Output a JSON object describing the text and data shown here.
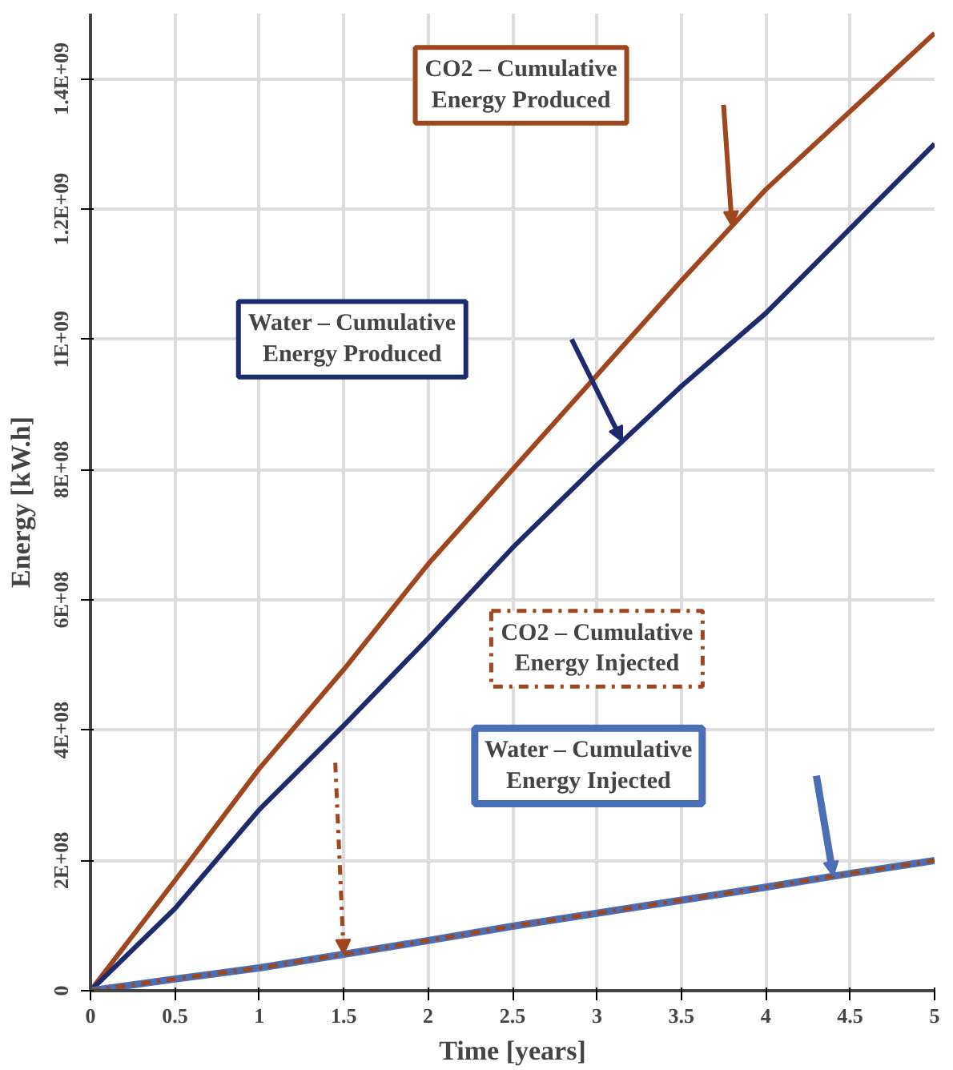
{
  "chart_data": {
    "type": "line",
    "xlabel": "Time [years]",
    "ylabel": "Energy [kW.h]",
    "x": [
      0,
      0.5,
      1,
      1.5,
      2,
      2.5,
      3,
      3.5,
      4,
      4.5,
      5
    ],
    "series": [
      {
        "name": "CO2 – Cumulative Energy Produced",
        "color": "#a0461e",
        "line_style": "solid",
        "values": [
          0,
          169000000.0,
          341000000.0,
          493000000.0,
          655000000.0,
          800000000.0,
          945000000.0,
          1090000000.0,
          1230000000.0,
          1350000000.0,
          1470000000.0
        ]
      },
      {
        "name": "Water – Cumulative Energy Produced",
        "color": "#1c2a6e",
        "line_style": "solid",
        "values": [
          0,
          126000000.0,
          278000000.0,
          407000000.0,
          541000000.0,
          680000000.0,
          807000000.0,
          928000000.0,
          1040000000.0,
          1170000000.0,
          1300000000.0
        ]
      },
      {
        "name": "Water – Cumulative Energy Injected",
        "color": "#4a6fb5",
        "line_style": "solid",
        "values": [
          0,
          18000000.0,
          35000000.0,
          56000000.0,
          77000000.0,
          99000000.0,
          119000000.0,
          139000000.0,
          159000000.0,
          180000000.0,
          200000000.0
        ]
      },
      {
        "name": "CO2 – Cumulative Energy Injected",
        "color": "#a0461e",
        "line_style": "dashdot",
        "values": [
          0,
          18000000.0,
          35000000.0,
          56000000.0,
          77000000.0,
          99000000.0,
          119000000.0,
          139000000.0,
          159000000.0,
          180000000.0,
          200000000.0
        ]
      }
    ],
    "xlim": [
      0,
      5
    ],
    "ylim": [
      0,
      1500000000.0
    ],
    "xticks": [
      0,
      0.5,
      1,
      1.5,
      2,
      2.5,
      3,
      3.5,
      4,
      4.5,
      5
    ],
    "yticks": [
      0,
      {
        "value": 200000000.0,
        "label": "2E+08"
      },
      {
        "value": 400000000.0,
        "label": "4E+08"
      },
      {
        "value": 600000000.0,
        "label": "6E+08"
      },
      {
        "value": 800000000.0,
        "label": "8E+08"
      },
      {
        "value": 1000000000.0,
        "label": "1E+09"
      },
      {
        "value": 1200000000.0,
        "label": "1.2E+09"
      },
      {
        "value": 1400000000.0,
        "label": "1.4E+09"
      }
    ],
    "grid": true,
    "marker": "none"
  }
}
